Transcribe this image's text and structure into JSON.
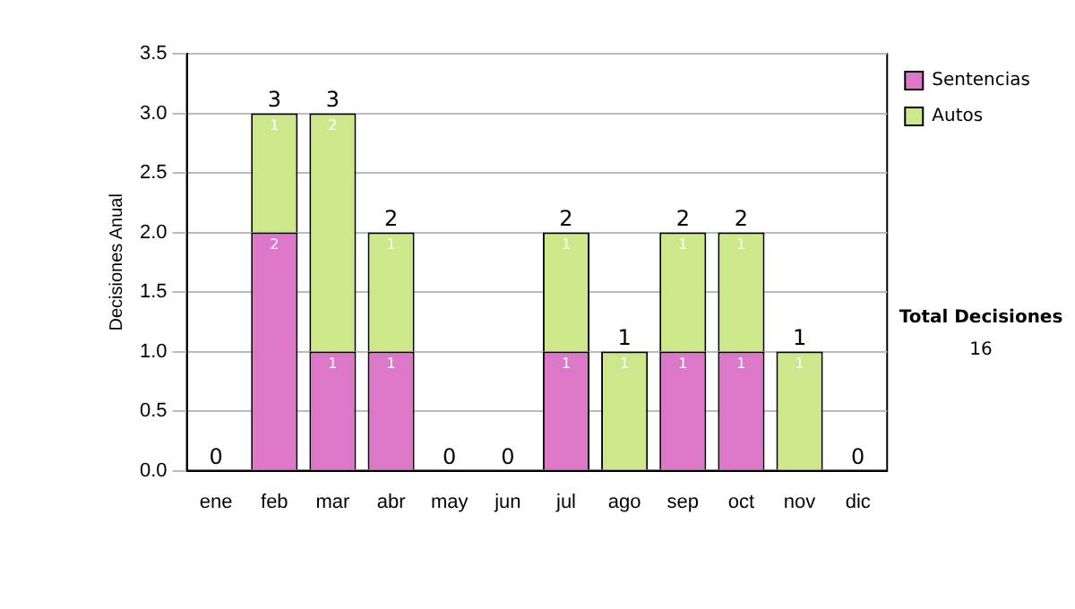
{
  "chart_data": {
    "type": "bar",
    "stacked": true,
    "ylabel": "Decisiones Anual",
    "categories": [
      "ene",
      "feb",
      "mar",
      "abr",
      "may",
      "jun",
      "jul",
      "ago",
      "sep",
      "oct",
      "nov",
      "dic"
    ],
    "series": [
      {
        "name": "Sentencias",
        "color": "#dd77c8",
        "values": [
          0,
          2,
          1,
          1,
          0,
          0,
          1,
          0,
          1,
          1,
          0,
          0
        ],
        "value_labels": [
          null,
          "2",
          "1",
          "1",
          null,
          null,
          "1",
          null,
          "1",
          "1",
          null,
          null
        ]
      },
      {
        "name": "Autos",
        "color": "#cce88a",
        "values": [
          0,
          1,
          2,
          1,
          0,
          0,
          1,
          1,
          1,
          1,
          1,
          0
        ],
        "value_labels": [
          null,
          "1",
          "2",
          "1",
          null,
          null,
          "1",
          "1",
          "1",
          "1",
          "1",
          null
        ]
      }
    ],
    "totals": [
      "0",
      "3",
      "3",
      "2",
      "0",
      "0",
      "2",
      "1",
      "2",
      "2",
      "1",
      "0"
    ],
    "ylim": [
      0,
      3.5
    ],
    "yticks": [
      {
        "value": 0,
        "label": "0.0"
      },
      {
        "value": 0.5,
        "label": "0.5"
      },
      {
        "value": 1,
        "label": "1.0"
      },
      {
        "value": 1.5,
        "label": "1.5"
      },
      {
        "value": 2,
        "label": "2.0"
      },
      {
        "value": 2.5,
        "label": "2.5"
      },
      {
        "value": 3,
        "label": "3.0"
      },
      {
        "value": 3.5,
        "label": "3.5"
      }
    ],
    "grid": "y",
    "legend": "right",
    "annotations": [
      "Total Decisiones",
      "16"
    ]
  }
}
